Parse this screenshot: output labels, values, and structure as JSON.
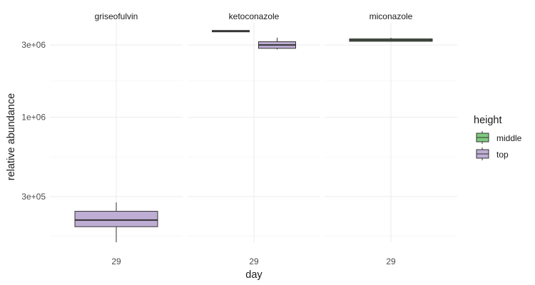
{
  "chart_data": {
    "type": "box",
    "xlabel": "day",
    "ylabel": "relative abundance",
    "y_scale": "log10",
    "ylim": [
      150000,
      4200000
    ],
    "y_ticks": [
      {
        "value": 300000,
        "label": "3e+05"
      },
      {
        "value": 1000000,
        "label": "1e+06"
      },
      {
        "value": 3000000,
        "label": "3e+06"
      }
    ],
    "grid": true,
    "legend": {
      "title": "height",
      "position": "right",
      "entries": [
        {
          "label": "middle",
          "color": "#7fc97f"
        },
        {
          "label": "top",
          "color": "#beaed4"
        }
      ]
    },
    "facets": [
      {
        "title": "griseofulvin",
        "x_tick": "29",
        "boxes": [
          {
            "group": "top",
            "min": 150000,
            "q1": 190000,
            "median": 210000,
            "q3": 240000,
            "max": 275000
          }
        ]
      },
      {
        "title": "ketoconazole",
        "x_tick": "29",
        "boxes": [
          {
            "group": "middle",
            "min": 3700000,
            "q1": 3700000,
            "median": 3700000,
            "q3": 3700000,
            "max": 3760000
          },
          {
            "group": "top",
            "min": 2800000,
            "q1": 2850000,
            "median": 3000000,
            "q3": 3150000,
            "max": 3350000
          }
        ]
      },
      {
        "title": "miconazole",
        "x_tick": "29",
        "boxes": [
          {
            "group": "middle",
            "min": 3170000,
            "q1": 3170000,
            "median": 3230000,
            "q3": 3290000,
            "max": 3350000
          }
        ]
      }
    ]
  }
}
